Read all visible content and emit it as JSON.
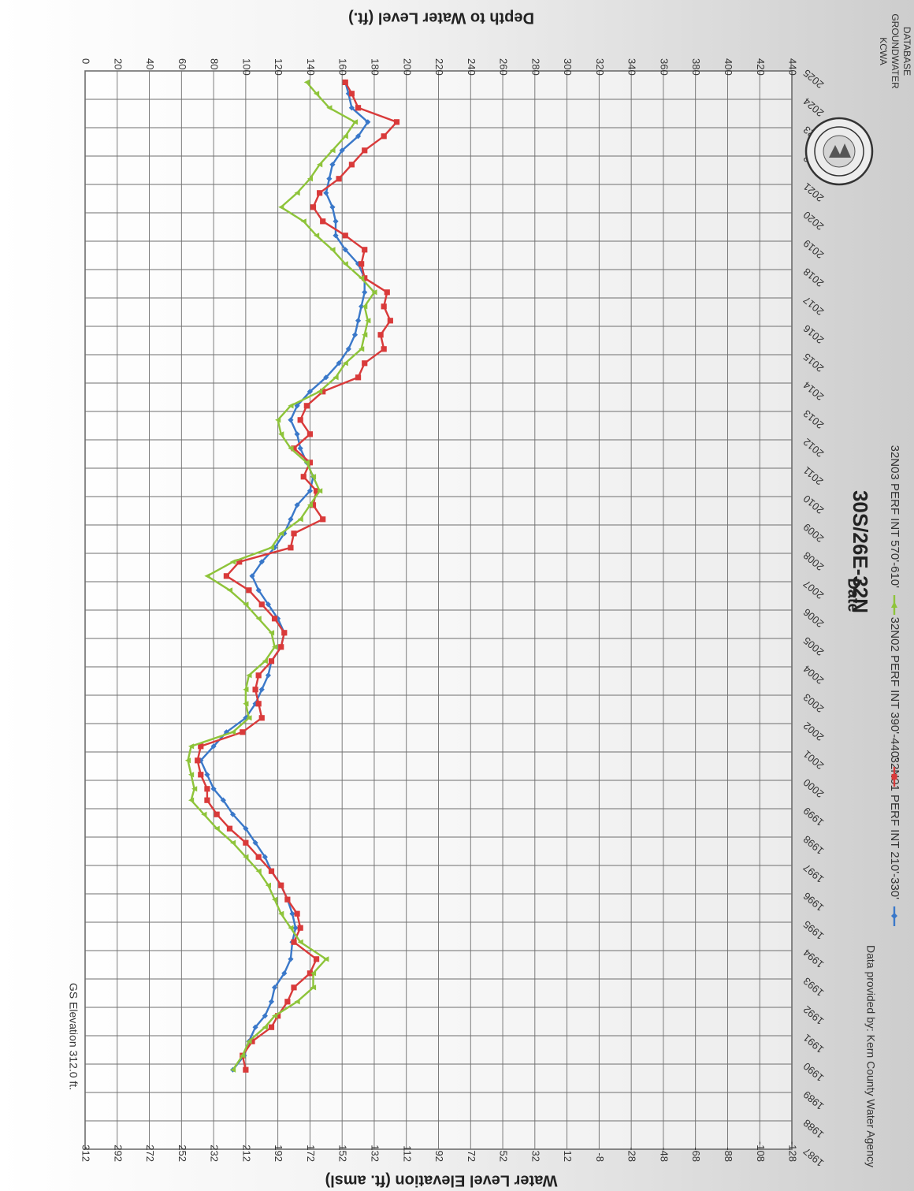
{
  "chart_data": {
    "type": "line",
    "title": "30S/26E-32N",
    "xlabel": "Date",
    "ylabel_left": "Water Level Elevation (ft. amsl)",
    "ylabel_right": "Depth to Water Level (ft.)",
    "xlim": [
      1987,
      2025
    ],
    "ylim_left": [
      -128,
      312
    ],
    "ylim_right": [
      440,
      0
    ],
    "x_ticks": [
      1987,
      1988,
      1989,
      1990,
      1991,
      1992,
      1993,
      1994,
      1995,
      1996,
      1997,
      1998,
      1999,
      2000,
      2001,
      2002,
      2003,
      2004,
      2005,
      2006,
      2007,
      2008,
      2009,
      2010,
      2011,
      2012,
      2013,
      2014,
      2015,
      2016,
      2017,
      2018,
      2019,
      2020,
      2021,
      2022,
      2023,
      2024,
      2025
    ],
    "y_ticks_left": [
      312,
      292,
      272,
      252,
      232,
      212,
      192,
      172,
      152,
      132,
      112,
      92,
      72,
      52,
      32,
      12,
      -8,
      -28,
      -48,
      -68,
      -88,
      -108,
      -128
    ],
    "y_ticks_right": [
      0,
      20,
      40,
      60,
      80,
      100,
      120,
      140,
      160,
      180,
      200,
      220,
      240,
      260,
      280,
      300,
      320,
      340,
      360,
      380,
      400,
      420,
      440
    ],
    "grid": true,
    "legend_position": "bottom",
    "series": [
      {
        "name": "32N01 PERF INT 210'-330'",
        "color": "#3a78c9",
        "marker": "diamond",
        "points": [
          [
            1989.8,
            220
          ],
          [
            1990.3,
            213
          ],
          [
            1990.8,
            210
          ],
          [
            1991.3,
            206
          ],
          [
            1991.7,
            200
          ],
          [
            1992.2,
            196
          ],
          [
            1992.7,
            194
          ],
          [
            1993.2,
            188
          ],
          [
            1993.7,
            184
          ],
          [
            1994.3,
            183
          ],
          [
            1994.8,
            181
          ],
          [
            1995.3,
            183
          ],
          [
            1995.8,
            186
          ],
          [
            1996.3,
            190
          ],
          [
            1996.8,
            196
          ],
          [
            1997.3,
            200
          ],
          [
            1997.8,
            206
          ],
          [
            1998.3,
            212
          ],
          [
            1998.8,
            220
          ],
          [
            1999.3,
            226
          ],
          [
            1999.7,
            232
          ],
          [
            2000.2,
            236
          ],
          [
            2000.7,
            240
          ],
          [
            2001.2,
            232
          ],
          [
            2001.7,
            224
          ],
          [
            2002.2,
            212
          ],
          [
            2002.7,
            206
          ],
          [
            2003.2,
            202
          ],
          [
            2003.7,
            198
          ],
          [
            2004.2,
            196
          ],
          [
            2004.7,
            190
          ],
          [
            2005.2,
            188
          ],
          [
            2005.7,
            192
          ],
          [
            2006.2,
            198
          ],
          [
            2006.7,
            204
          ],
          [
            2007.2,
            208
          ],
          [
            2007.7,
            202
          ],
          [
            2008.2,
            194
          ],
          [
            2008.7,
            188
          ],
          [
            2009.2,
            184
          ],
          [
            2009.7,
            180
          ],
          [
            2010.2,
            172
          ],
          [
            2010.7,
            170
          ],
          [
            2011.2,
            174
          ],
          [
            2011.7,
            178
          ],
          [
            2012.2,
            180
          ],
          [
            2012.7,
            184
          ],
          [
            2013.2,
            180
          ],
          [
            2013.7,
            172
          ],
          [
            2014.2,
            162
          ],
          [
            2014.7,
            154
          ],
          [
            2015.2,
            148
          ],
          [
            2015.7,
            144
          ],
          [
            2016.2,
            142
          ],
          [
            2016.7,
            140
          ],
          [
            2017.2,
            138
          ],
          [
            2017.7,
            138
          ],
          [
            2018.2,
            142
          ],
          [
            2018.7,
            150
          ],
          [
            2019.2,
            156
          ],
          [
            2019.7,
            156
          ],
          [
            2020.2,
            158
          ],
          [
            2020.7,
            162
          ],
          [
            2021.2,
            160
          ],
          [
            2021.7,
            158
          ],
          [
            2022.2,
            152
          ],
          [
            2022.7,
            142
          ],
          [
            2023.2,
            136
          ],
          [
            2023.7,
            146
          ],
          [
            2024.2,
            148
          ],
          [
            2024.6,
            150
          ]
        ]
      },
      {
        "name": "32N02 PERF INT 390'-440'",
        "color": "#d93a3a",
        "marker": "square",
        "points": [
          [
            1989.8,
            212
          ],
          [
            1990.3,
            214
          ],
          [
            1990.8,
            208
          ],
          [
            1991.3,
            196
          ],
          [
            1991.7,
            192
          ],
          [
            1992.2,
            186
          ],
          [
            1992.7,
            182
          ],
          [
            1993.2,
            172
          ],
          [
            1993.7,
            168
          ],
          [
            1994.3,
            182
          ],
          [
            1994.8,
            178
          ],
          [
            1995.3,
            180
          ],
          [
            1995.8,
            186
          ],
          [
            1996.3,
            190
          ],
          [
            1996.8,
            196
          ],
          [
            1997.3,
            204
          ],
          [
            1997.8,
            212
          ],
          [
            1998.3,
            222
          ],
          [
            1998.8,
            230
          ],
          [
            1999.3,
            236
          ],
          [
            1999.7,
            236
          ],
          [
            2000.2,
            240
          ],
          [
            2000.7,
            242
          ],
          [
            2001.2,
            240
          ],
          [
            2001.7,
            214
          ],
          [
            2002.2,
            202
          ],
          [
            2002.7,
            204
          ],
          [
            2003.2,
            206
          ],
          [
            2003.7,
            204
          ],
          [
            2004.2,
            196
          ],
          [
            2004.7,
            190
          ],
          [
            2005.2,
            188
          ],
          [
            2005.7,
            194
          ],
          [
            2006.2,
            202
          ],
          [
            2006.7,
            210
          ],
          [
            2007.2,
            224
          ],
          [
            2007.7,
            216
          ],
          [
            2008.2,
            184
          ],
          [
            2008.7,
            182
          ],
          [
            2009.2,
            164
          ],
          [
            2009.7,
            170
          ],
          [
            2010.2,
            168
          ],
          [
            2010.7,
            176
          ],
          [
            2011.2,
            172
          ],
          [
            2011.7,
            182
          ],
          [
            2012.2,
            172
          ],
          [
            2012.7,
            178
          ],
          [
            2013.2,
            174
          ],
          [
            2013.7,
            164
          ],
          [
            2014.2,
            142
          ],
          [
            2014.7,
            138
          ],
          [
            2015.2,
            126
          ],
          [
            2015.7,
            128
          ],
          [
            2016.2,
            122
          ],
          [
            2016.7,
            126
          ],
          [
            2017.2,
            124
          ],
          [
            2017.7,
            138
          ],
          [
            2018.2,
            140
          ],
          [
            2018.7,
            138
          ],
          [
            2019.2,
            150
          ],
          [
            2019.7,
            164
          ],
          [
            2020.2,
            170
          ],
          [
            2020.7,
            166
          ],
          [
            2021.2,
            154
          ],
          [
            2021.7,
            146
          ],
          [
            2022.2,
            138
          ],
          [
            2022.7,
            126
          ],
          [
            2023.2,
            118
          ],
          [
            2023.7,
            142
          ],
          [
            2024.2,
            146
          ],
          [
            2024.6,
            150
          ]
        ]
      },
      {
        "name": "32N03 PERF INT 570'-610'",
        "color": "#8ec43a",
        "marker": "triangle",
        "points": [
          [
            1989.8,
            220
          ],
          [
            1990.3,
            214
          ],
          [
            1990.8,
            210
          ],
          [
            1991.3,
            200
          ],
          [
            1991.7,
            194
          ],
          [
            1992.2,
            180
          ],
          [
            1992.7,
            170
          ],
          [
            1993.2,
            170
          ],
          [
            1993.7,
            162
          ],
          [
            1994.3,
            178
          ],
          [
            1994.8,
            184
          ],
          [
            1995.3,
            190
          ],
          [
            1995.8,
            194
          ],
          [
            1996.3,
            198
          ],
          [
            1996.8,
            204
          ],
          [
            1997.3,
            212
          ],
          [
            1997.8,
            220
          ],
          [
            1998.3,
            230
          ],
          [
            1998.8,
            238
          ],
          [
            1999.3,
            246
          ],
          [
            1999.7,
            244
          ],
          [
            2000.2,
            246
          ],
          [
            2000.7,
            248
          ],
          [
            2001.2,
            246
          ],
          [
            2001.7,
            220
          ],
          [
            2002.2,
            210
          ],
          [
            2002.7,
            212
          ],
          [
            2003.2,
            212
          ],
          [
            2003.7,
            210
          ],
          [
            2004.2,
            200
          ],
          [
            2004.7,
            194
          ],
          [
            2005.2,
            196
          ],
          [
            2005.7,
            204
          ],
          [
            2006.2,
            212
          ],
          [
            2006.7,
            222
          ],
          [
            2007.2,
            236
          ],
          [
            2007.7,
            220
          ],
          [
            2008.2,
            196
          ],
          [
            2008.7,
            190
          ],
          [
            2009.2,
            178
          ],
          [
            2009.7,
            172
          ],
          [
            2010.2,
            166
          ],
          [
            2010.7,
            170
          ],
          [
            2011.2,
            174
          ],
          [
            2011.7,
            184
          ],
          [
            2012.2,
            190
          ],
          [
            2012.7,
            192
          ],
          [
            2013.2,
            184
          ],
          [
            2013.7,
            166
          ],
          [
            2014.2,
            156
          ],
          [
            2014.7,
            150
          ],
          [
            2015.2,
            140
          ],
          [
            2015.7,
            138
          ],
          [
            2016.2,
            136
          ],
          [
            2016.7,
            138
          ],
          [
            2017.2,
            132
          ],
          [
            2017.7,
            140
          ],
          [
            2018.2,
            150
          ],
          [
            2018.7,
            158
          ],
          [
            2019.2,
            168
          ],
          [
            2019.7,
            176
          ],
          [
            2020.2,
            190
          ],
          [
            2020.7,
            180
          ],
          [
            2021.2,
            172
          ],
          [
            2021.7,
            166
          ],
          [
            2022.2,
            158
          ],
          [
            2022.7,
            150
          ],
          [
            2023.2,
            144
          ],
          [
            2023.7,
            160
          ],
          [
            2024.2,
            168
          ],
          [
            2024.6,
            174
          ]
        ]
      }
    ]
  },
  "annotations": {
    "gs_elevation": "GS Elevation  312.0 ft.",
    "source": "Data provided by: Kern County Water Agency",
    "seal_label_line1": "KCWA",
    "seal_label_line2": "GROUNDWATER",
    "seal_label_line3": "DATABASE"
  }
}
